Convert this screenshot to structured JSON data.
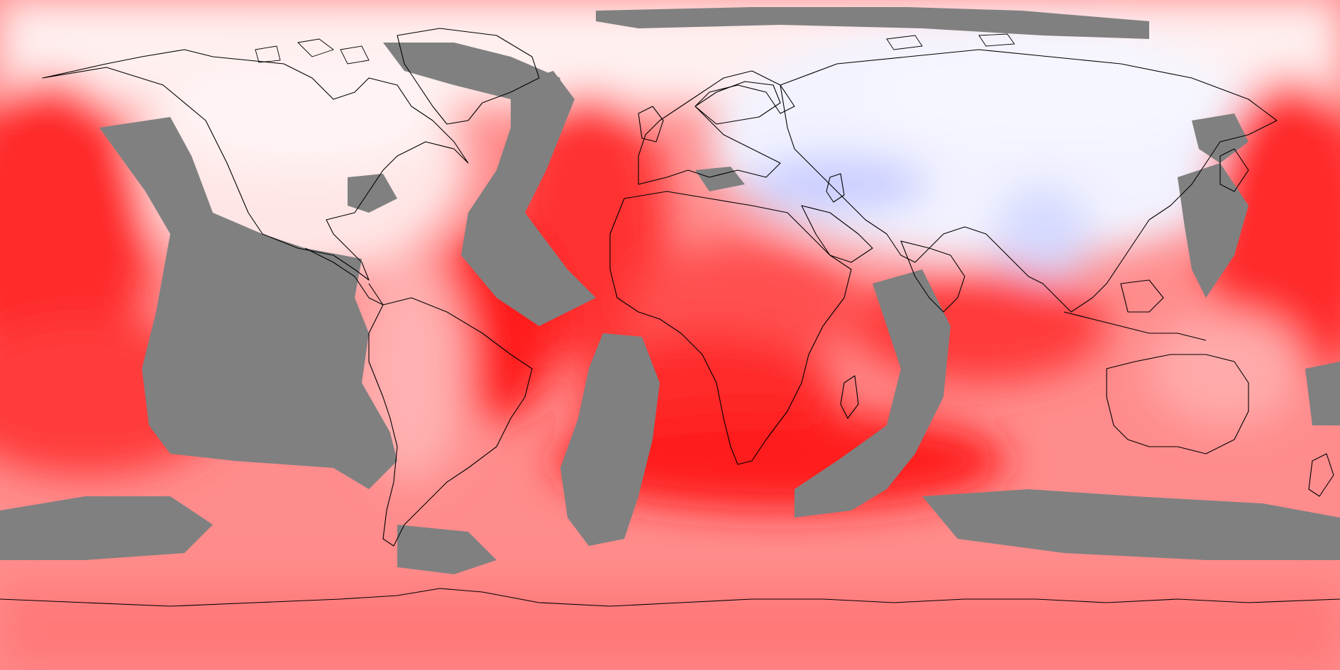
{
  "map": {
    "projection": "equirectangular",
    "extent": {
      "lon": [
        -180,
        180
      ],
      "lat": [
        -90,
        90
      ]
    },
    "colors": {
      "no_data": "#808080",
      "coastline": "#000000",
      "scale": [
        "#c8ccff",
        "#e6e8ff",
        "#ffffff",
        "#ffdada",
        "#ffb4b4",
        "#ff8c8c",
        "#ff5a5a",
        "#ff2a2a",
        "#ff0000"
      ]
    },
    "coastline_width": "thin",
    "labels": []
  }
}
